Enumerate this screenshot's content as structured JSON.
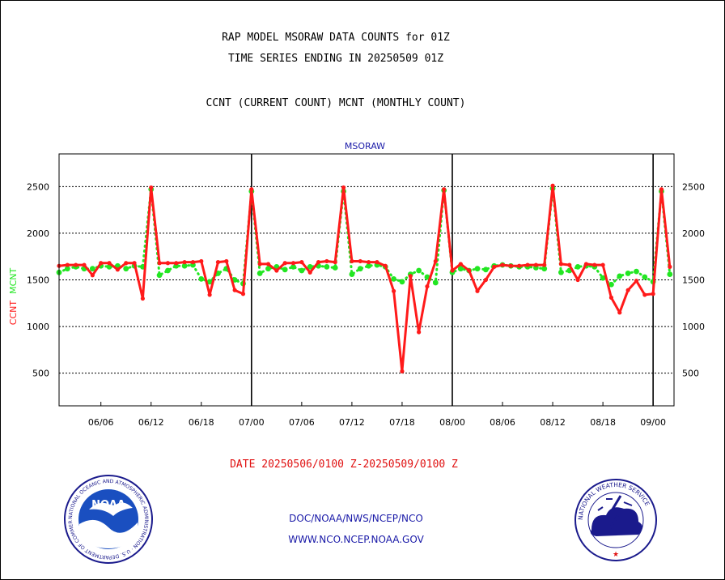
{
  "titles": {
    "line1": "RAP MODEL MSORAW DATA COUNTS for 01Z",
    "line2": "TIME SERIES ENDING IN 20250509 01Z",
    "line3": "CCNT (CURRENT COUNT) MCNT (MONTHLY COUNT)"
  },
  "date_range": "DATE 20250506/0100 Z-20250509/0100 Z",
  "footer": {
    "line1": "DOC/NOAA/NWS/NCEP/NCO",
    "line2": "WWW.NCO.NCEP.NOAA.GOV"
  },
  "logos": {
    "left": {
      "center_text": "NOAA",
      "ring_text": "NATIONAL OCEANIC AND ATMOSPHERIC ADMINISTRATION · U.S. DEPARTMENT OF COMMERCE"
    },
    "right": {
      "ring_text": "NATIONAL WEATHER SERVICE"
    }
  },
  "colors": {
    "ccnt": "#ff1a1a",
    "mcnt": "#22e622",
    "axis": "#000000",
    "plot_title": "#1a1aa8"
  },
  "chart_data": {
    "type": "line",
    "title": "MSORAW",
    "ylabel_left_parts": [
      {
        "text": "CCNT",
        "color": "#ff1a1a"
      },
      {
        "text": "MCNT",
        "color": "#22e622"
      }
    ],
    "ylim": [
      150,
      2850
    ],
    "yticks": [
      500,
      1000,
      1500,
      2000,
      2500
    ],
    "xlim": [
      0,
      73.5
    ],
    "xticks": [
      {
        "x": 5,
        "label": "06/06"
      },
      {
        "x": 11,
        "label": "06/12"
      },
      {
        "x": 17,
        "label": "06/18"
      },
      {
        "x": 23,
        "label": "07/00"
      },
      {
        "x": 29,
        "label": "07/06"
      },
      {
        "x": 35,
        "label": "07/12"
      },
      {
        "x": 41,
        "label": "07/18"
      },
      {
        "x": 47,
        "label": "08/00"
      },
      {
        "x": 53,
        "label": "08/06"
      },
      {
        "x": 59,
        "label": "08/12"
      },
      {
        "x": 65,
        "label": "08/18"
      },
      {
        "x": 71,
        "label": "09/00"
      }
    ],
    "day_dividers": [
      23,
      47,
      71
    ],
    "grid": "horizontal-dashed",
    "series": [
      {
        "name": "CCNT",
        "color": "#ff1a1a",
        "values": [
          1650,
          1660,
          1660,
          1660,
          1550,
          1680,
          1680,
          1610,
          1680,
          1680,
          1300,
          2490,
          1680,
          1680,
          1680,
          1690,
          1690,
          1700,
          1340,
          1690,
          1700,
          1390,
          1350,
          2470,
          1670,
          1670,
          1600,
          1680,
          1680,
          1690,
          1580,
          1690,
          1700,
          1690,
          2490,
          1700,
          1700,
          1690,
          1690,
          1650,
          1380,
          520,
          1540,
          940,
          1430,
          1700,
          2470,
          1600,
          1670,
          1600,
          1380,
          1500,
          1640,
          1660,
          1650,
          1650,
          1660,
          1660,
          1660,
          2510,
          1670,
          1660,
          1500,
          1670,
          1660,
          1660,
          1310,
          1150,
          1390,
          1490,
          1340,
          1350,
          2470,
          1640
        ]
      },
      {
        "name": "MCNT",
        "color": "#22e622",
        "values": [
          1580,
          1620,
          1640,
          1620,
          1620,
          1650,
          1640,
          1650,
          1620,
          1650,
          1640,
          2470,
          1550,
          1600,
          1650,
          1650,
          1660,
          1510,
          1480,
          1570,
          1620,
          1500,
          1460,
          2450,
          1570,
          1620,
          1640,
          1610,
          1640,
          1600,
          1640,
          1650,
          1640,
          1630,
          2450,
          1560,
          1620,
          1650,
          1660,
          1640,
          1510,
          1480,
          1560,
          1600,
          1530,
          1470,
          2460,
          1580,
          1620,
          1600,
          1620,
          1610,
          1650,
          1660,
          1650,
          1640,
          1640,
          1630,
          1620,
          2480,
          1580,
          1600,
          1640,
          1650,
          1640,
          1520,
          1450,
          1540,
          1570,
          1590,
          1530,
          1480,
          2450,
          1560
        ]
      }
    ]
  }
}
